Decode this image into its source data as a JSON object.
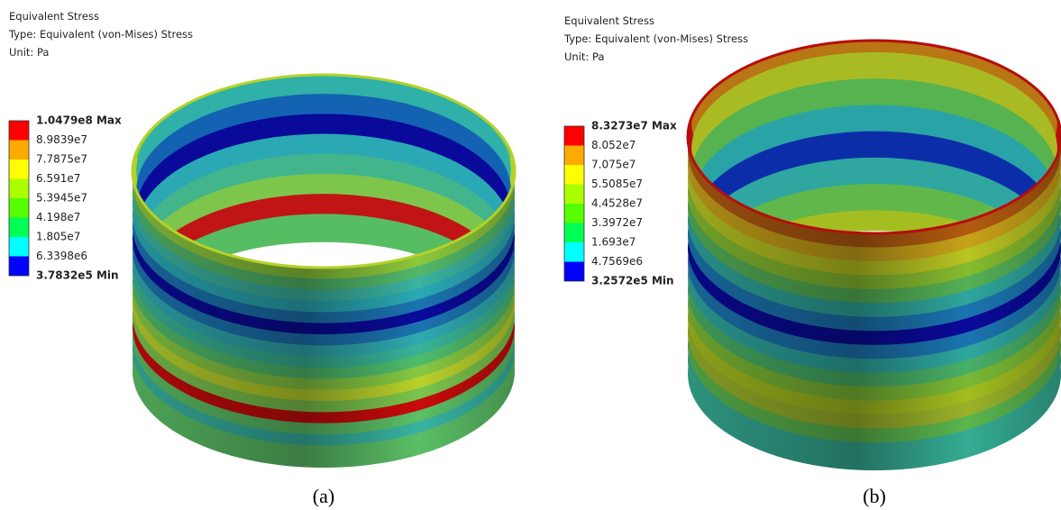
{
  "panels": [
    {
      "header": [
        "Equivalent Stress",
        "Type: Equivalent (von-Mises) Stress",
        "Unit: Pa"
      ],
      "legend": [
        "1.0479e8 Max",
        "8.9839e7",
        "7.7875e7",
        "6.591e7",
        "5.3945e7",
        "4.198e7",
        "1.805e7",
        "6.3398e6",
        "3.7832e5 Min"
      ],
      "caption": "(a)"
    },
    {
      "header": [
        "Equivalent Stress",
        "Type: Equivalent (von-Mises) Stress",
        "Unit: Pa"
      ],
      "legend": [
        "8.3273e7 Max",
        "8.052e7",
        "7.075e7",
        "5.5085e7",
        "4.4528e7",
        "3.3972e7",
        "1.693e7",
        "4.7569e6",
        "3.2572e5 Min"
      ],
      "caption": "(b)"
    }
  ]
}
